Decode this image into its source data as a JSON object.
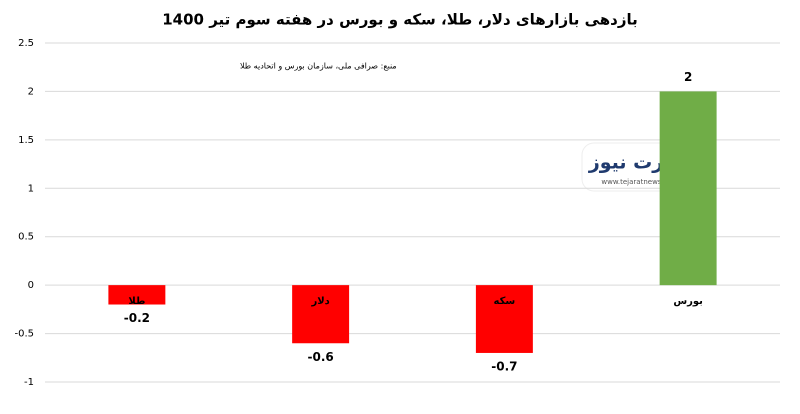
{
  "chart_data": {
    "type": "bar",
    "title": "بازدهی بازارهای دلار، طلا، سکه و بورس در هفته سوم تیر 1400",
    "source": "منبع: صرافی ملی، سازمان بورس و اتحادیه طلا",
    "watermark": {
      "text": "تجارت نیوز",
      "url": "www.tejaratnews.com"
    },
    "categories": [
      "طلا",
      "دلار",
      "سکه",
      "بورس"
    ],
    "values": [
      -0.2,
      -0.6,
      -0.7,
      2
    ],
    "colors": [
      "#ff0000",
      "#ff0000",
      "#ff0000",
      "#70ad47"
    ],
    "ylim": [
      -1,
      2.5
    ],
    "yticks": [
      2.5,
      2,
      1.5,
      1,
      0.5,
      0,
      -0.5,
      -1
    ],
    "grid": true
  }
}
